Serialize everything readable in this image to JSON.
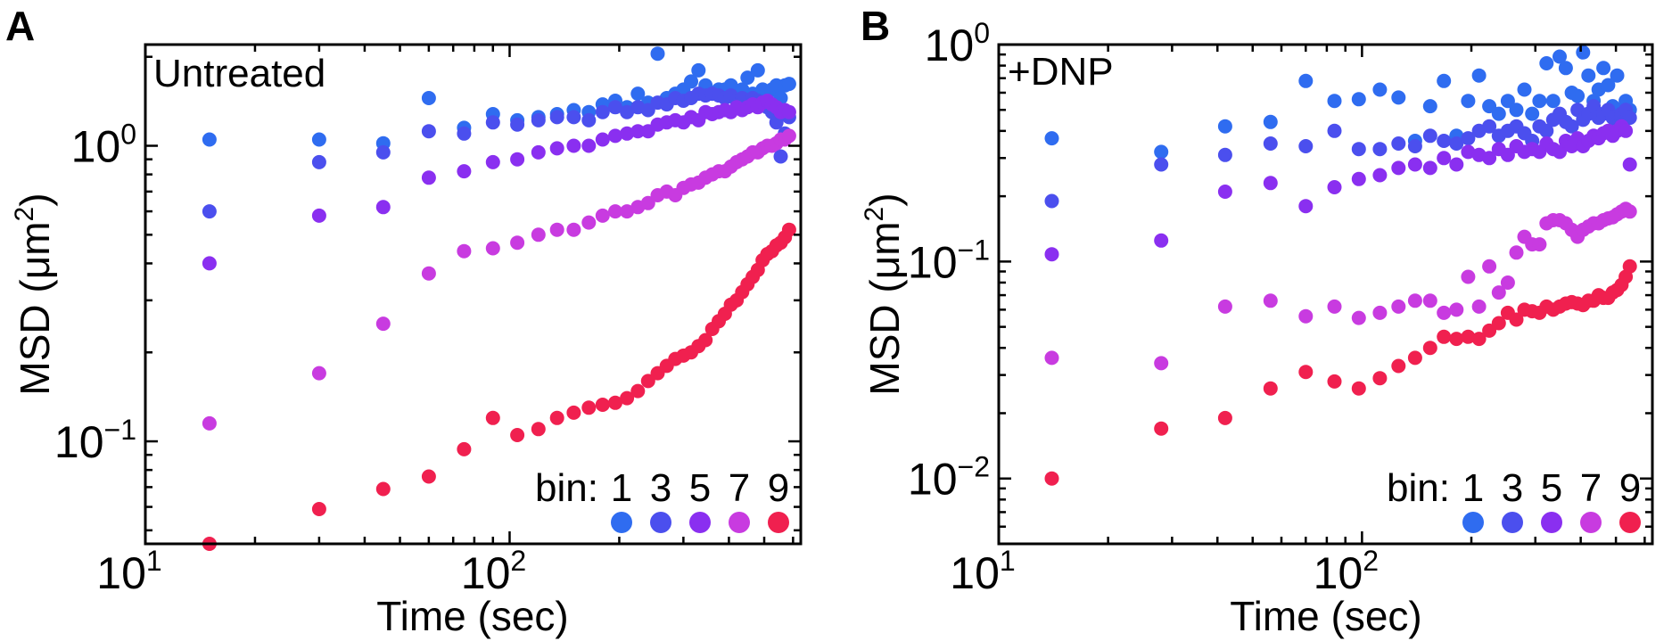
{
  "chart_data": [
    {
      "type": "scatter",
      "panel_label": "A",
      "annotation": "Untreated",
      "xlabel": "Time (sec)",
      "ylabel_main": "MSD (",
      "ylabel_unit": "μm",
      "ylabel_exp": "2",
      "ylabel_end": ")",
      "xscale": "log",
      "yscale": "log",
      "xlim": [
        10,
        630
      ],
      "ylim": [
        0.045,
        2.2
      ],
      "xticks": [
        {
          "value": 10,
          "base": "10",
          "exp": "1"
        },
        {
          "value": 100,
          "base": "10",
          "exp": "2"
        }
      ],
      "yticks": [
        {
          "value": 0.1,
          "base": "10",
          "exp": "−1"
        },
        {
          "value": 1,
          "base": "10",
          "exp": "0"
        }
      ],
      "legend": {
        "prefix": "bin:",
        "labels": [
          "1",
          "3",
          "5",
          "7",
          "9"
        ],
        "colors": [
          "#2f6cf0",
          "#4b4fee",
          "#8a2ff0",
          "#c83be0",
          "#f0204f"
        ],
        "placement": "bottom-right"
      },
      "x": [
        15,
        30,
        45,
        60,
        75,
        90,
        105,
        120,
        135,
        150,
        165,
        180,
        195,
        210,
        225,
        240,
        255,
        270,
        285,
        300,
        315,
        330,
        345,
        360,
        375,
        390,
        405,
        420,
        435,
        450,
        465,
        480,
        495,
        510,
        525,
        540,
        555,
        570,
        585
      ],
      "series": [
        {
          "name": "1",
          "color": "#2f6cf0",
          "values": [
            1.05,
            1.05,
            1.02,
            1.45,
            1.15,
            1.28,
            1.22,
            1.25,
            1.28,
            1.32,
            1.3,
            1.38,
            1.42,
            1.35,
            1.5,
            1.4,
            2.05,
            1.45,
            1.5,
            1.55,
            1.65,
            1.8,
            1.6,
            1.5,
            1.55,
            1.55,
            1.6,
            1.5,
            1.55,
            1.7,
            1.5,
            1.8,
            1.55,
            1.5,
            1.55,
            1.6,
            1.45,
            1.6,
            1.62
          ]
        },
        {
          "name": "3",
          "color": "#4b4fee",
          "values": [
            0.6,
            0.88,
            0.95,
            1.12,
            1.1,
            1.2,
            1.18,
            1.22,
            1.25,
            1.25,
            1.22,
            1.3,
            1.35,
            1.3,
            1.35,
            1.32,
            1.4,
            1.38,
            1.45,
            1.42,
            1.45,
            1.5,
            1.48,
            1.5,
            1.48,
            1.45,
            1.48,
            1.42,
            1.45,
            1.4,
            1.45,
            1.42,
            1.4,
            1.35,
            1.3,
            1.2,
            0.92,
            1.1,
            1.25
          ]
        },
        {
          "name": "5",
          "color": "#8a2ff0",
          "values": [
            0.4,
            0.58,
            0.62,
            0.78,
            0.82,
            0.88,
            0.9,
            0.95,
            0.98,
            1.0,
            1.0,
            1.05,
            1.08,
            1.1,
            1.12,
            1.12,
            1.18,
            1.2,
            1.22,
            1.2,
            1.25,
            1.22,
            1.3,
            1.28,
            1.3,
            1.32,
            1.3,
            1.35,
            1.32,
            1.35,
            1.38,
            1.35,
            1.4,
            1.42,
            1.38,
            1.35,
            1.3,
            1.32,
            1.3
          ]
        },
        {
          "name": "7",
          "color": "#c83be0",
          "values": [
            0.115,
            0.17,
            0.25,
            0.37,
            0.44,
            0.45,
            0.47,
            0.5,
            0.52,
            0.52,
            0.55,
            0.58,
            0.6,
            0.6,
            0.62,
            0.64,
            0.68,
            0.7,
            0.68,
            0.72,
            0.74,
            0.75,
            0.78,
            0.8,
            0.82,
            0.82,
            0.85,
            0.88,
            0.9,
            0.92,
            0.95,
            0.95,
            0.98,
            1.0,
            1.0,
            1.02,
            1.05,
            1.05,
            1.08
          ]
        },
        {
          "name": "9",
          "color": "#f0204f",
          "values": [
            0.045,
            0.059,
            0.069,
            0.076,
            0.094,
            0.12,
            0.105,
            0.11,
            0.12,
            0.125,
            0.13,
            0.133,
            0.135,
            0.14,
            0.148,
            0.16,
            0.17,
            0.18,
            0.19,
            0.195,
            0.2,
            0.21,
            0.22,
            0.24,
            0.255,
            0.27,
            0.29,
            0.3,
            0.32,
            0.34,
            0.36,
            0.38,
            0.41,
            0.43,
            0.44,
            0.46,
            0.47,
            0.49,
            0.52
          ]
        }
      ]
    },
    {
      "type": "scatter",
      "panel_label": "B",
      "annotation": "+DNP",
      "xlabel": "Time (sec)",
      "ylabel_main": "MSD (",
      "ylabel_unit": "μm",
      "ylabel_exp": "2",
      "ylabel_end": ")",
      "xscale": "log",
      "yscale": "log",
      "xlim": [
        10,
        630
      ],
      "ylim": [
        0.005,
        1.0
      ],
      "xticks": [
        {
          "value": 10,
          "base": "10",
          "exp": "1"
        },
        {
          "value": 100,
          "base": "10",
          "exp": "2"
        }
      ],
      "yticks": [
        {
          "value": 0.01,
          "base": "10",
          "exp": "−2"
        },
        {
          "value": 0.1,
          "base": "10",
          "exp": "−1"
        },
        {
          "value": 1,
          "base": "10",
          "exp": "0"
        }
      ],
      "legend": {
        "prefix": "bin:",
        "labels": [
          "1",
          "3",
          "5",
          "7",
          "9"
        ],
        "colors": [
          "#2f6cf0",
          "#4b4fee",
          "#8a2ff0",
          "#c83be0",
          "#f0204f"
        ],
        "placement": "bottom-right"
      },
      "x": [
        14,
        28,
        42,
        56,
        70,
        84,
        98,
        112,
        126,
        140,
        154,
        168,
        182,
        196,
        210,
        224,
        238,
        252,
        266,
        280,
        294,
        308,
        322,
        336,
        350,
        364,
        378,
        392,
        406,
        420,
        434,
        448,
        462,
        476,
        490,
        504,
        518,
        532,
        546
      ],
      "series": [
        {
          "name": "1",
          "color": "#2f6cf0",
          "values": [
            0.37,
            0.32,
            0.42,
            0.44,
            0.68,
            0.55,
            0.56,
            0.62,
            0.57,
            0.36,
            0.52,
            0.68,
            0.38,
            0.55,
            0.72,
            0.52,
            0.48,
            0.55,
            0.5,
            0.62,
            0.48,
            0.55,
            0.82,
            0.55,
            0.88,
            0.78,
            0.6,
            0.58,
            0.92,
            0.72,
            0.55,
            0.62,
            0.78,
            0.65,
            0.52,
            0.72,
            0.5,
            0.55,
            0.5
          ]
        },
        {
          "name": "3",
          "color": "#4b4fee",
          "values": [
            0.19,
            0.28,
            0.31,
            0.35,
            0.34,
            0.4,
            0.33,
            0.33,
            0.35,
            0.34,
            0.38,
            0.36,
            0.35,
            0.37,
            0.4,
            0.42,
            0.38,
            0.4,
            0.42,
            0.39,
            0.36,
            0.42,
            0.4,
            0.45,
            0.48,
            0.44,
            0.42,
            0.5,
            0.45,
            0.48,
            0.52,
            0.46,
            0.48,
            0.5,
            0.46,
            0.42,
            0.48,
            0.5,
            0.46
          ]
        },
        {
          "name": "5",
          "color": "#8a2ff0",
          "values": [
            0.108,
            0.125,
            0.21,
            0.23,
            0.18,
            0.22,
            0.24,
            0.25,
            0.27,
            0.28,
            0.27,
            0.3,
            0.28,
            0.32,
            0.31,
            0.3,
            0.33,
            0.31,
            0.34,
            0.32,
            0.33,
            0.32,
            0.35,
            0.33,
            0.32,
            0.36,
            0.34,
            0.37,
            0.34,
            0.36,
            0.38,
            0.37,
            0.39,
            0.4,
            0.38,
            0.4,
            0.42,
            0.4,
            0.28
          ]
        },
        {
          "name": "7",
          "color": "#c83be0",
          "values": [
            0.036,
            0.034,
            0.062,
            0.066,
            0.056,
            0.062,
            0.055,
            0.058,
            0.062,
            0.066,
            0.066,
            0.058,
            0.06,
            0.085,
            0.062,
            0.095,
            0.072,
            0.08,
            0.11,
            0.13,
            0.12,
            0.12,
            0.15,
            0.155,
            0.155,
            0.15,
            0.14,
            0.13,
            0.14,
            0.145,
            0.15,
            0.15,
            0.155,
            0.158,
            0.16,
            0.165,
            0.17,
            0.175,
            0.17
          ]
        },
        {
          "name": "9",
          "color": "#f0204f",
          "values": [
            0.01,
            0.017,
            0.019,
            0.026,
            0.031,
            0.028,
            0.026,
            0.029,
            0.033,
            0.036,
            0.04,
            0.045,
            0.044,
            0.045,
            0.044,
            0.048,
            0.052,
            0.058,
            0.054,
            0.06,
            0.059,
            0.058,
            0.062,
            0.06,
            0.062,
            0.064,
            0.065,
            0.064,
            0.063,
            0.066,
            0.066,
            0.07,
            0.068,
            0.068,
            0.072,
            0.074,
            0.078,
            0.085,
            0.095
          ]
        }
      ]
    }
  ]
}
